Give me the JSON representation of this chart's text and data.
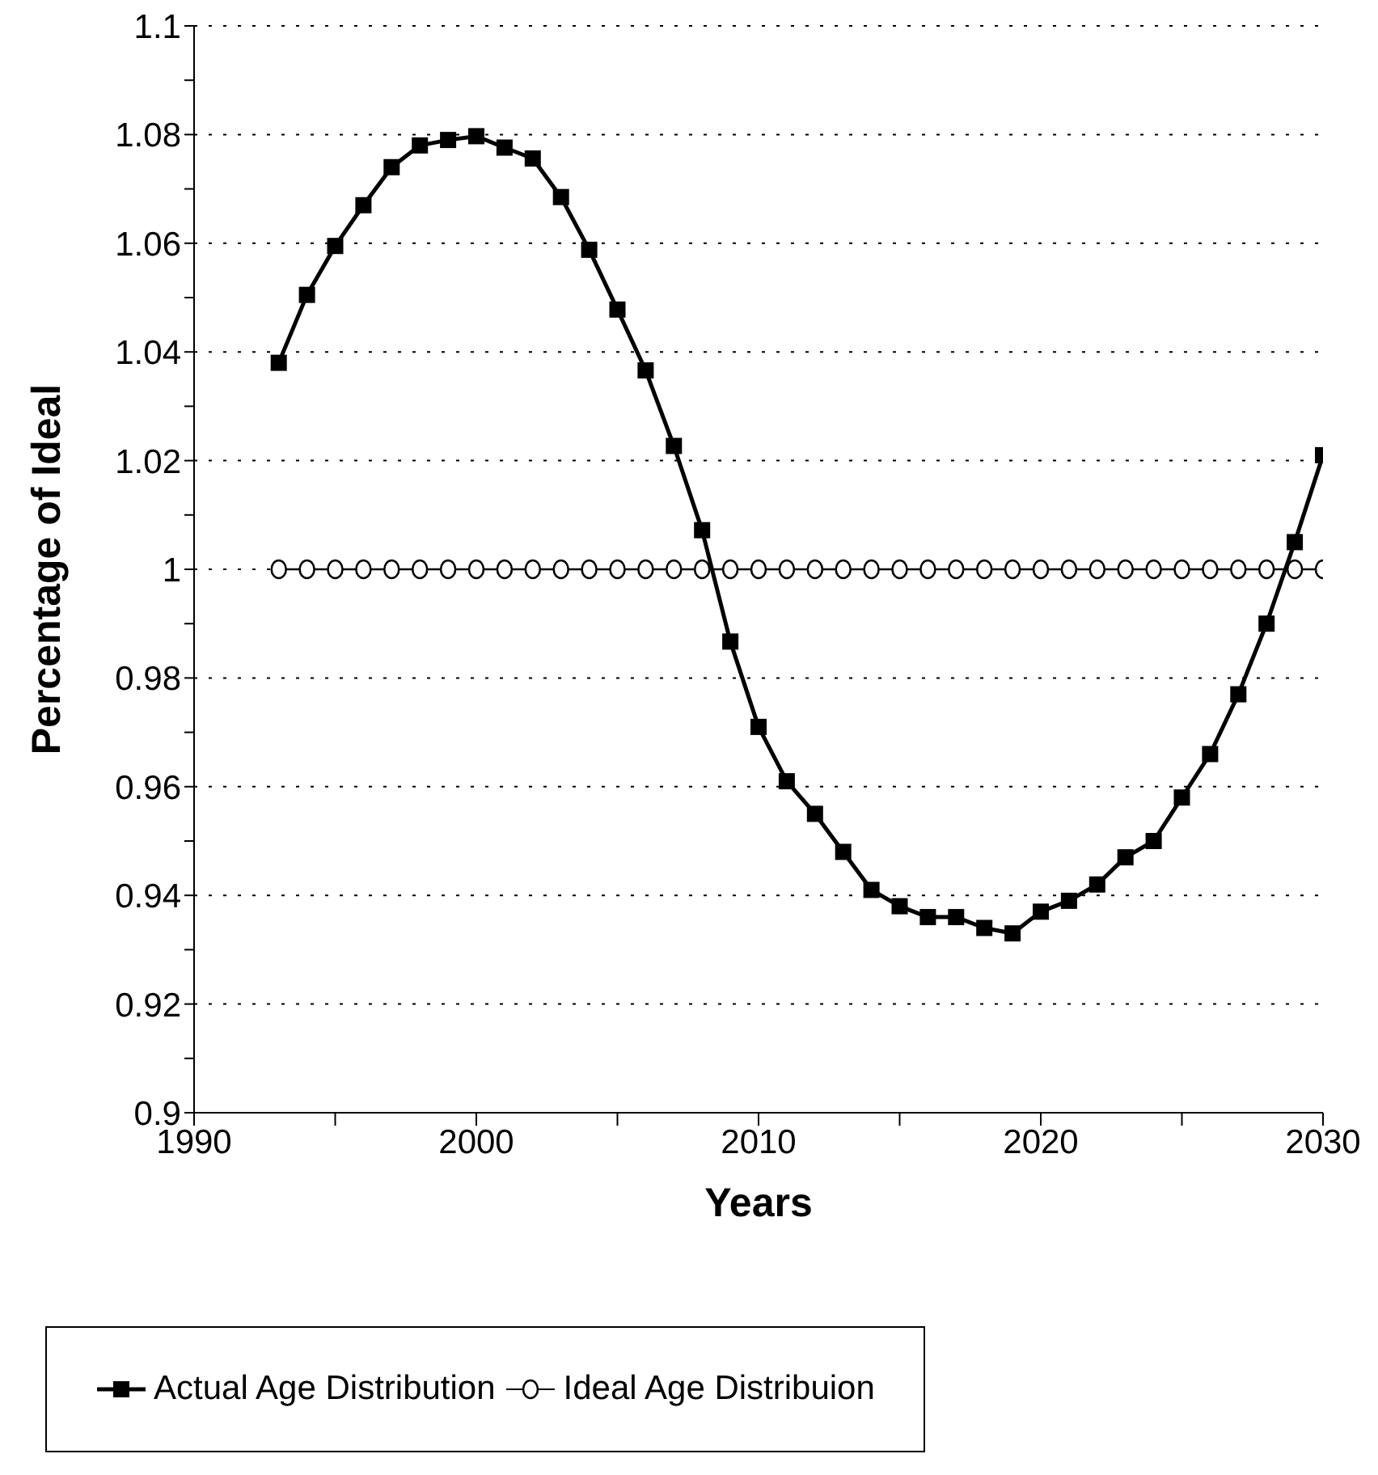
{
  "chart_data": {
    "type": "line",
    "xlabel": "Years",
    "ylabel": "Percentage of Ideal",
    "x": [
      1993,
      1994,
      1995,
      1996,
      1997,
      1998,
      1999,
      2000,
      2001,
      2002,
      2003,
      2004,
      2005,
      2006,
      2007,
      2008,
      2009,
      2010,
      2011,
      2012,
      2013,
      2014,
      2015,
      2016,
      2017,
      2018,
      2019,
      2020,
      2021,
      2022,
      2023,
      2024,
      2025,
      2026,
      2027,
      2028,
      2029,
      2030
    ],
    "series": [
      {
        "name": "Actual Age Distribution",
        "color": "#000000",
        "marker": "square",
        "values": [
          1.038,
          1.0505,
          1.0595,
          1.067,
          1.074,
          1.078,
          1.079,
          1.0797,
          1.0776,
          1.0756,
          1.0685,
          1.0588,
          1.0478,
          1.0366,
          1.0227,
          1.0072,
          0.9867,
          0.971,
          0.961,
          0.955,
          0.948,
          0.941,
          0.938,
          0.936,
          0.936,
          0.934,
          0.933,
          0.937,
          0.939,
          0.942,
          0.947,
          0.95,
          0.958,
          0.966,
          0.977,
          0.99,
          1.005,
          1.021
        ]
      },
      {
        "name": "Ideal Age Distribuion",
        "color": "#000000",
        "marker": "circle",
        "values": [
          1,
          1,
          1,
          1,
          1,
          1,
          1,
          1,
          1,
          1,
          1,
          1,
          1,
          1,
          1,
          1,
          1,
          1,
          1,
          1,
          1,
          1,
          1,
          1,
          1,
          1,
          1,
          1,
          1,
          1,
          1,
          1,
          1,
          1,
          1,
          1,
          1,
          1
        ]
      }
    ],
    "xlim": [
      1990,
      2030
    ],
    "xticks": [
      1990,
      {
        "value": 1995,
        "label": null
      },
      2000,
      {
        "value": 2005,
        "label": null
      },
      2010,
      {
        "value": 2015,
        "label": null
      },
      2020,
      {
        "value": 2025,
        "label": null
      },
      2030
    ],
    "ylim": [
      0.9,
      1.1
    ],
    "yticks": [
      0.9,
      {
        "value": 0.91,
        "label": null
      },
      0.92,
      {
        "value": 0.93,
        "label": null
      },
      0.94,
      {
        "value": 0.95,
        "label": null
      },
      0.96,
      {
        "value": 0.97,
        "label": null
      },
      0.98,
      {
        "value": 0.99,
        "label": null
      },
      1,
      {
        "value": 1.01,
        "label": null
      },
      1.02,
      {
        "value": 1.03,
        "label": null
      },
      1.04,
      {
        "value": 1.05,
        "label": null
      },
      1.06,
      {
        "value": 1.07,
        "label": null
      },
      1.08,
      {
        "value": 1.09,
        "label": null
      },
      1.1
    ],
    "grid": "y",
    "line_style": "solid",
    "legend": "bottom"
  }
}
